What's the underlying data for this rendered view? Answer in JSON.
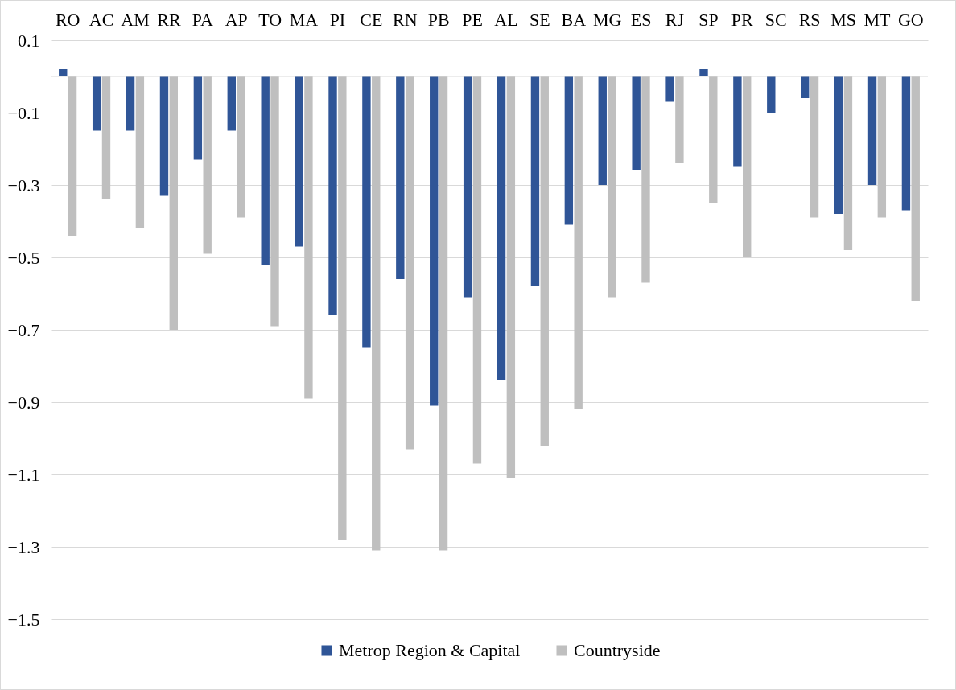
{
  "chart_data": {
    "type": "bar",
    "categories": [
      "RO",
      "AC",
      "AM",
      "RR",
      "PA",
      "AP",
      "TO",
      "MA",
      "PI",
      "CE",
      "RN",
      "PB",
      "PE",
      "AL",
      "SE",
      "BA",
      "MG",
      "ES",
      "RJ",
      "SP",
      "PR",
      "SC",
      "RS",
      "MS",
      "MT",
      "GO"
    ],
    "series": [
      {
        "name": "Metrop Region & Capital",
        "color": "#2f5597",
        "values": [
          0.02,
          -0.15,
          -0.15,
          -0.33,
          -0.23,
          -0.15,
          -0.52,
          -0.47,
          -0.66,
          -0.75,
          -0.56,
          -0.91,
          -0.61,
          -0.84,
          -0.58,
          -0.41,
          -0.3,
          -0.26,
          -0.07,
          0.02,
          -0.25,
          -0.1,
          -0.06,
          -0.38,
          -0.3,
          -0.37
        ]
      },
      {
        "name": "Countryside",
        "color": "#bfbfbf",
        "values": [
          -0.44,
          -0.34,
          -0.42,
          -0.7,
          -0.49,
          -0.39,
          -0.69,
          -0.89,
          -1.28,
          -1.31,
          -1.03,
          -1.31,
          -1.07,
          -1.11,
          -1.02,
          -0.92,
          -0.61,
          -0.57,
          -0.24,
          -0.35,
          -0.5,
          null,
          -0.39,
          -0.48,
          -0.39,
          -0.62
        ]
      }
    ],
    "ylim": [
      -1.5,
      0.1
    ],
    "yticks": [
      0.1,
      -0.1,
      -0.3,
      -0.5,
      -0.7,
      -0.9,
      -1.1,
      -1.3,
      -1.5
    ],
    "ref_lines": [
      {
        "axis": "y",
        "value": 0,
        "color": "#d9d9d9"
      }
    ],
    "grid": "y",
    "legend": "bottom"
  }
}
